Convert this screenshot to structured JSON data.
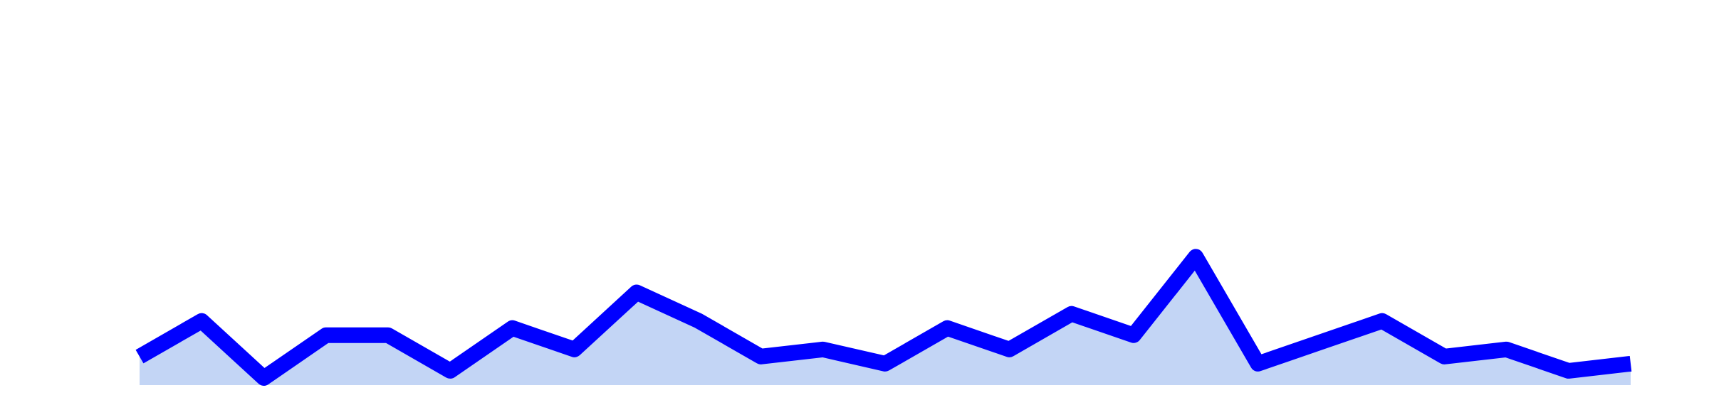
{
  "chart_data": {
    "type": "area",
    "title": "",
    "xlabel": "",
    "ylabel": "",
    "grid": false,
    "legend": "none",
    "axes_visible": false,
    "x": [
      0,
      1,
      2,
      3,
      4,
      5,
      6,
      7,
      8,
      9,
      10,
      11,
      12,
      13,
      14,
      15,
      16,
      17,
      18,
      19,
      20,
      21,
      22,
      23,
      24
    ],
    "ylim": [
      0,
      54
    ],
    "series": [
      {
        "values": [
          4,
          9,
          1,
          7,
          7,
          2,
          8,
          5,
          13,
          9,
          4,
          5,
          3,
          8,
          5,
          10,
          7,
          18,
          3,
          6,
          9,
          4,
          5,
          2,
          3
        ],
        "line_color": "#0000ff",
        "fill_color": "#c3d5f5"
      }
    ]
  }
}
